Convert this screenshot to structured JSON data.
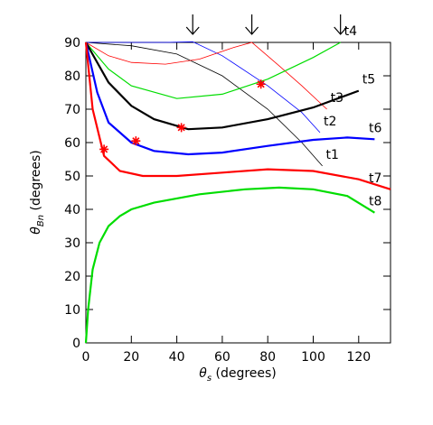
{
  "chart_data": {
    "type": "line",
    "xlabel": {
      "main": "θ",
      "sub": "s",
      "rest": " (degrees)"
    },
    "ylabel": {
      "main": "θ",
      "sub": "Bn",
      "rest": " (degrees)"
    },
    "xlim": [
      0,
      134
    ],
    "ylim": [
      0,
      90
    ],
    "xticks": [
      0,
      20,
      40,
      60,
      80,
      100,
      120
    ],
    "yticks": [
      0,
      10,
      20,
      30,
      40,
      50,
      60,
      70,
      80,
      90
    ],
    "series": [
      {
        "name": "t1",
        "color": "#000000",
        "width": 0.8,
        "x": [
          0,
          20,
          40,
          60,
          80,
          95,
          104
        ],
        "values": [
          90,
          89,
          86.5,
          80,
          70,
          60,
          53
        ]
      },
      {
        "name": "t2",
        "color": "#0000ff",
        "width": 0.8,
        "x": [
          0,
          20,
          35,
          47,
          60,
          80,
          95,
          103
        ],
        "values": [
          90,
          90,
          90,
          90.2,
          86,
          77,
          69,
          63
        ]
      },
      {
        "name": "t3",
        "color": "#ff0000",
        "width": 0.8,
        "x": [
          0,
          10,
          20,
          35,
          50,
          65,
          73,
          85,
          95,
          106
        ],
        "values": [
          90,
          86,
          84,
          83.5,
          85,
          88.5,
          90,
          83,
          77,
          70
        ]
      },
      {
        "name": "t4",
        "color": "#00dd00",
        "width": 1.2,
        "x": [
          0,
          10,
          20,
          40,
          60,
          80,
          100,
          112
        ],
        "values": [
          90,
          82,
          77,
          73.2,
          74.5,
          79,
          85.5,
          90
        ]
      },
      {
        "name": "t5",
        "color": "#000000",
        "width": 2.2,
        "x": [
          0,
          10,
          20,
          30,
          45,
          60,
          80,
          100,
          120
        ],
        "values": [
          90,
          78,
          71,
          67,
          64,
          64.5,
          67,
          70.5,
          75.5
        ]
      },
      {
        "name": "t6",
        "color": "#0000ff",
        "width": 2.2,
        "x": [
          0,
          5,
          10,
          20,
          30,
          45,
          60,
          80,
          100,
          115,
          127
        ],
        "values": [
          90,
          75,
          66,
          60,
          57.5,
          56.5,
          57,
          59,
          60.8,
          61.5,
          61
        ]
      },
      {
        "name": "t7",
        "color": "#ff0000",
        "width": 2.2,
        "x": [
          0,
          3,
          8,
          15,
          25,
          40,
          60,
          80,
          100,
          120,
          134
        ],
        "values": [
          90,
          70,
          56,
          51.5,
          50,
          50,
          51,
          52,
          51.5,
          49,
          46
        ]
      },
      {
        "name": "t8",
        "color": "#00dd00",
        "width": 2.2,
        "x": [
          0,
          1,
          3,
          6,
          10,
          15,
          20,
          30,
          50,
          70,
          85,
          100,
          115,
          127
        ],
        "values": [
          0,
          10,
          22,
          30,
          35,
          38,
          40,
          42,
          44.5,
          46,
          46.5,
          46,
          44,
          39
        ]
      }
    ],
    "markers": {
      "color": "#ff0000",
      "x": [
        8,
        22,
        42,
        77
      ],
      "values": [
        58,
        60.5,
        64.5,
        77.5
      ]
    },
    "arrows_x": [
      47,
      73,
      112
    ]
  }
}
